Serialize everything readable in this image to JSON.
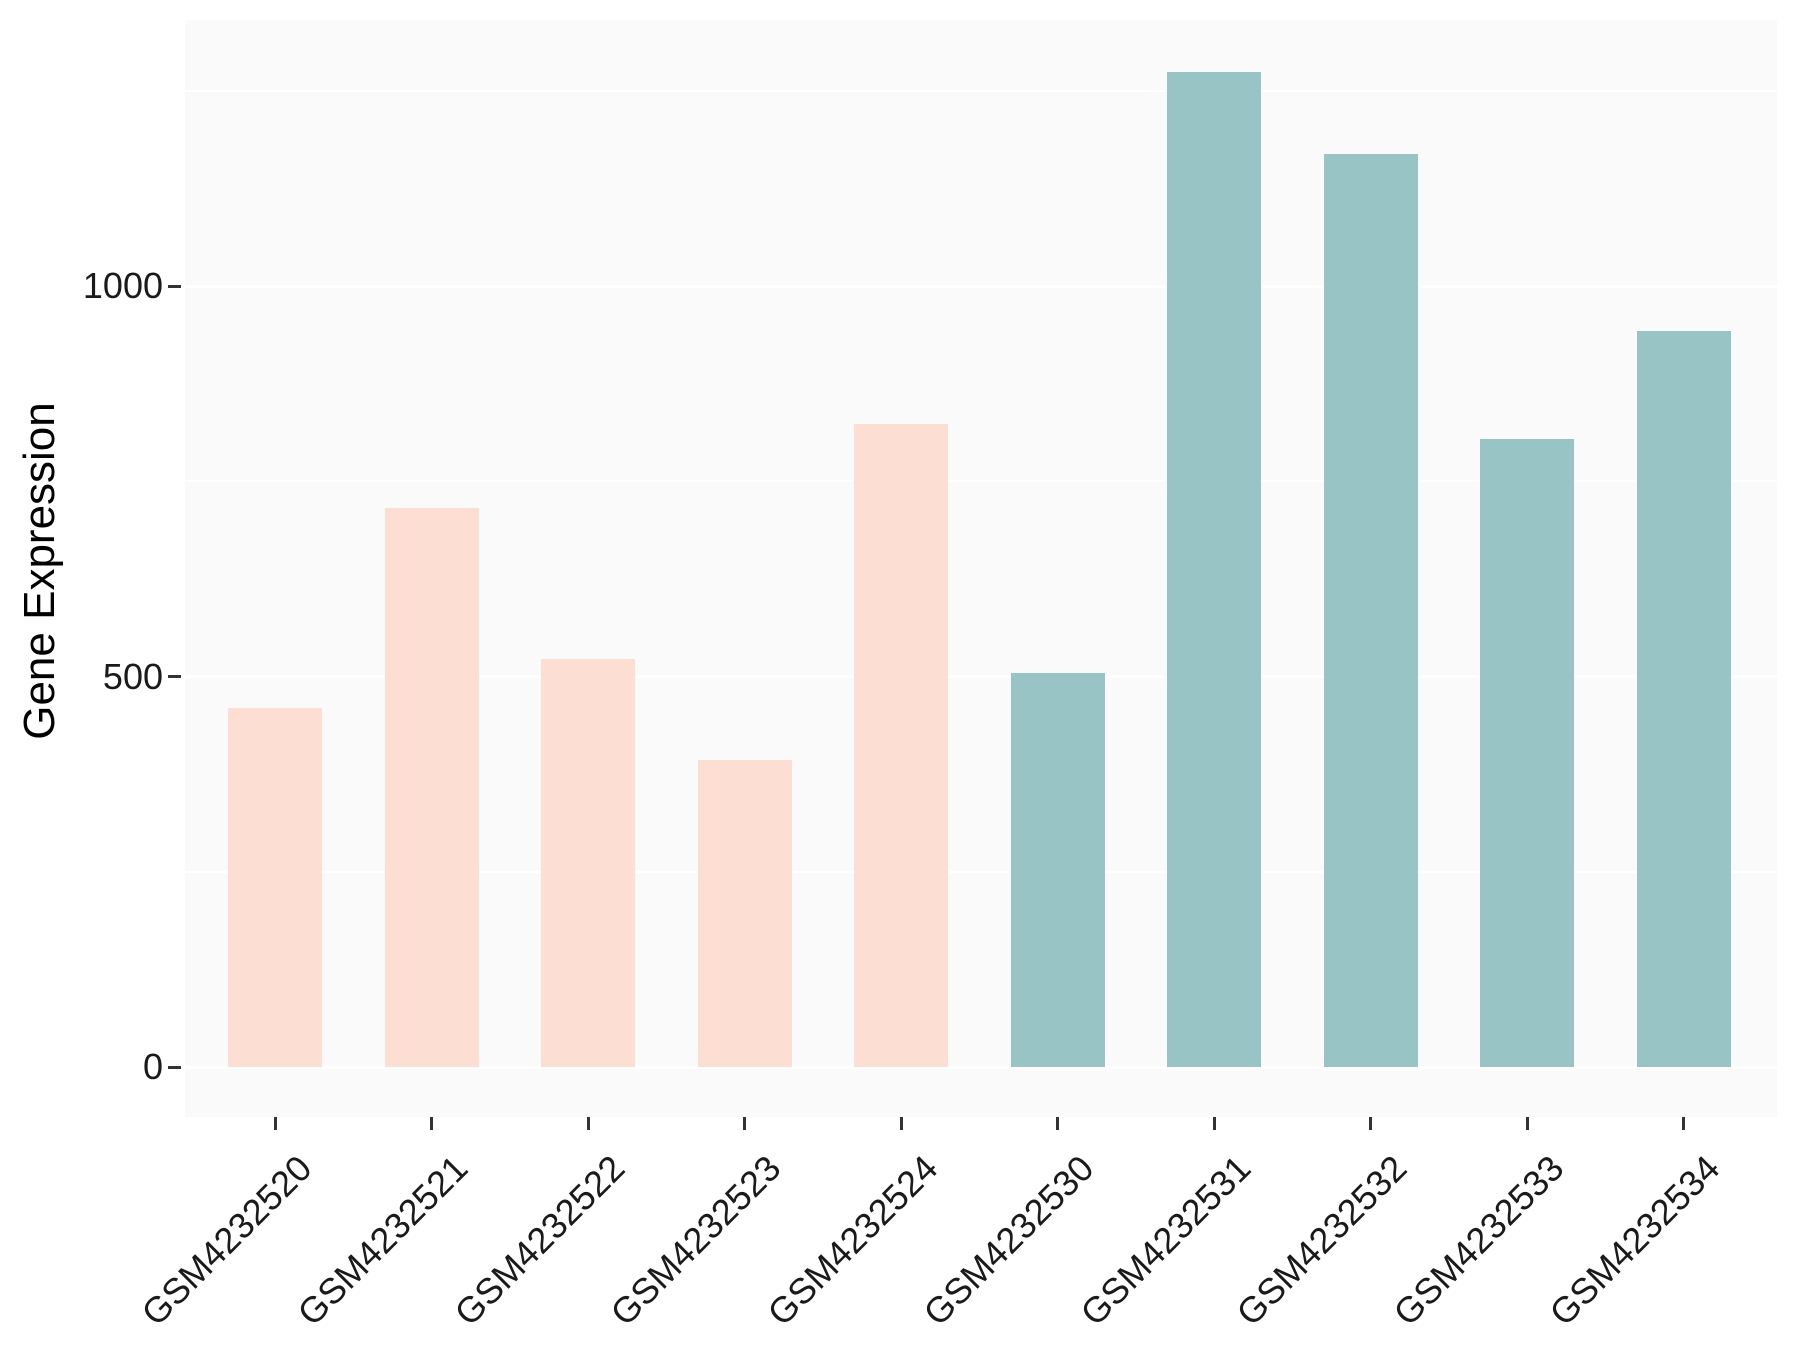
{
  "figure": {
    "ylabel": "Gene Expression",
    "colors": {
      "background": "#ffffff",
      "panel_background": "#fafafa",
      "gridline": "#ffffff",
      "tick_mark": "#333333",
      "tick_text": "#1a1a1a",
      "axis_title_text": "#000000",
      "bar_pink": "#fcded2",
      "bar_teal": "#99c4c6"
    }
  },
  "chart_data": {
    "type": "bar",
    "title": "",
    "xlabel": "",
    "ylabel": "Gene Expression",
    "categories": [
      "GSM4232520",
      "GSM4232521",
      "GSM4232522",
      "GSM4232523",
      "GSM4232524",
      "GSM4232530",
      "GSM4232531",
      "GSM4232532",
      "GSM4232533",
      "GSM4232534"
    ],
    "values": [
      460,
      716,
      522,
      393,
      823,
      504,
      1274,
      1169,
      804,
      942
    ],
    "bar_colors": [
      "#fcded2",
      "#fcded2",
      "#fcded2",
      "#fcded2",
      "#fcded2",
      "#99c4c6",
      "#99c4c6",
      "#99c4c6",
      "#99c4c6",
      "#99c4c6"
    ],
    "yticks": [
      0,
      500,
      1000
    ],
    "ytick_labels": [
      "0",
      "500",
      "1000"
    ],
    "minor_gridlines": [
      250,
      750,
      1250
    ],
    "major_gridlines": [
      0,
      500,
      1000
    ],
    "ylim": [
      -64,
      1338
    ],
    "grid": "on",
    "legend": "none"
  }
}
